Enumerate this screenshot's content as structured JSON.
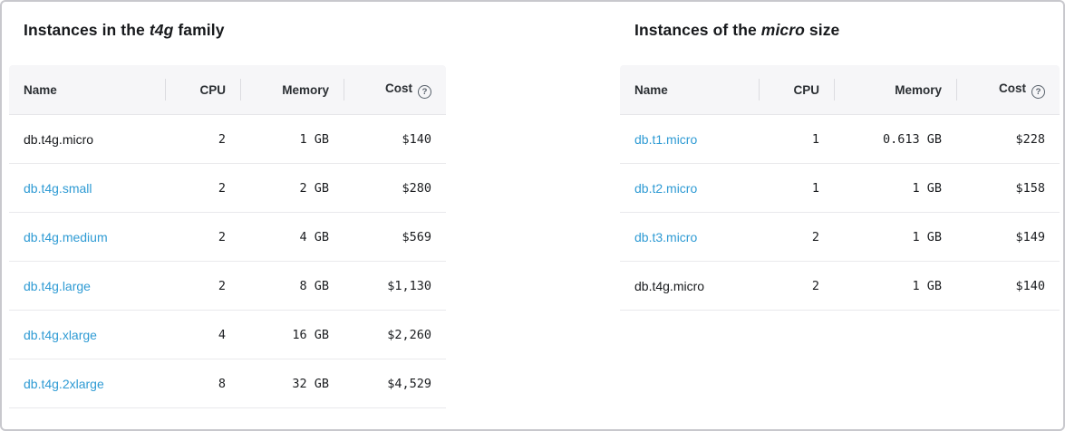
{
  "colors": {
    "link": "#2f9bd4",
    "header-bg": "#f6f6f8",
    "row-border": "#e9e9ec",
    "tick": "#dcdce0",
    "outer-border": "#c8c8cd",
    "text": "#17191c",
    "help": "#57606a"
  },
  "family_table": {
    "title": {
      "prefix": "Instances in the ",
      "em": "t4g",
      "suffix": " family"
    },
    "columns": [
      "Name",
      "CPU",
      "Memory",
      "Cost"
    ],
    "help_icon_glyph": "?",
    "rows": [
      {
        "name": "db.t4g.micro",
        "link": false,
        "cpu": "2",
        "memory": "1 GB",
        "cost": "$140"
      },
      {
        "name": "db.t4g.small",
        "link": true,
        "cpu": "2",
        "memory": "2 GB",
        "cost": "$280"
      },
      {
        "name": "db.t4g.medium",
        "link": true,
        "cpu": "2",
        "memory": "4 GB",
        "cost": "$569"
      },
      {
        "name": "db.t4g.large",
        "link": true,
        "cpu": "2",
        "memory": "8 GB",
        "cost": "$1,130"
      },
      {
        "name": "db.t4g.xlarge",
        "link": true,
        "cpu": "4",
        "memory": "16 GB",
        "cost": "$2,260"
      },
      {
        "name": "db.t4g.2xlarge",
        "link": true,
        "cpu": "8",
        "memory": "32 GB",
        "cost": "$4,529"
      }
    ]
  },
  "size_table": {
    "title": {
      "prefix": "Instances of the ",
      "em": "micro",
      "suffix": " size"
    },
    "columns": [
      "Name",
      "CPU",
      "Memory",
      "Cost"
    ],
    "help_icon_glyph": "?",
    "rows": [
      {
        "name": "db.t1.micro",
        "link": true,
        "cpu": "1",
        "memory": "0.613 GB",
        "cost": "$228"
      },
      {
        "name": "db.t2.micro",
        "link": true,
        "cpu": "1",
        "memory": "1 GB",
        "cost": "$158"
      },
      {
        "name": "db.t3.micro",
        "link": true,
        "cpu": "2",
        "memory": "1 GB",
        "cost": "$149"
      },
      {
        "name": "db.t4g.micro",
        "link": false,
        "cpu": "2",
        "memory": "1 GB",
        "cost": "$140"
      }
    ]
  }
}
